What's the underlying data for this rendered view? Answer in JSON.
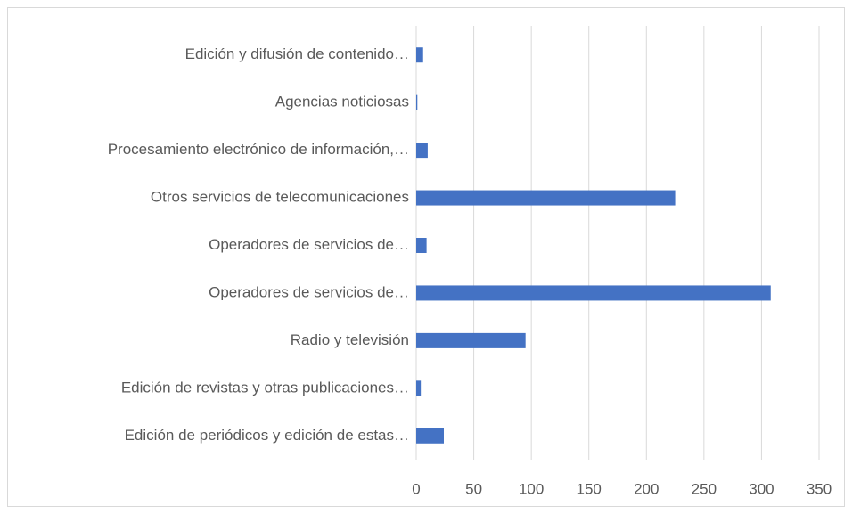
{
  "chart_data": {
    "type": "hbar",
    "categories": [
      "Edición y difusión de contenido…",
      "Agencias noticiosas",
      "Procesamiento electrónico de información,…",
      "Otros servicios de telecomunicaciones",
      "Operadores de servicios de…",
      "Operadores de servicios de…",
      "Radio y televisión",
      "Edición de revistas y otras publicaciones…",
      "Edición de periódicos y edición de estas…"
    ],
    "values": [
      6,
      1,
      10,
      225,
      9,
      308,
      95,
      4,
      24
    ],
    "color": "#4472c4",
    "xlim": [
      0,
      350
    ],
    "xticks": [
      0,
      50,
      100,
      150,
      200,
      250,
      300,
      350
    ],
    "grid": true
  }
}
